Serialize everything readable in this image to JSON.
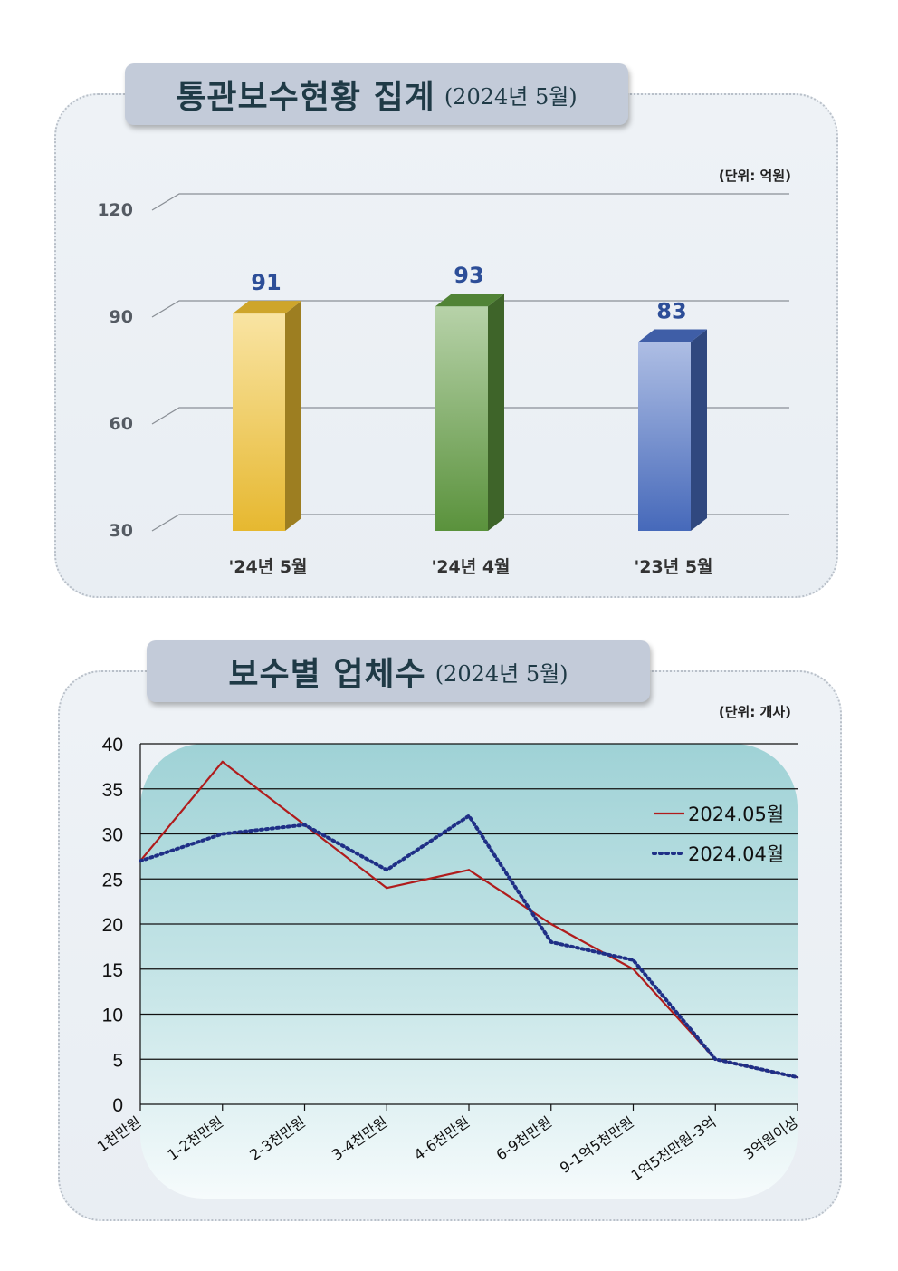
{
  "chart_data": [
    {
      "type": "bar",
      "title": "통관보수현황 집계",
      "subtitle": "(2024년 5월)",
      "unit": "(단위: 억원)",
      "categories": [
        "'24년 5월",
        "'24년 4월",
        "'23년 5월"
      ],
      "values": [
        91,
        93,
        83
      ],
      "data_labels": [
        "91",
        "93",
        "83"
      ],
      "ylim": [
        30,
        120
      ],
      "yticks": [
        30,
        60,
        90,
        120
      ],
      "grid": true,
      "colors": [
        "#f2c232",
        "#5f9a3f",
        "#4a6fc4"
      ]
    },
    {
      "type": "line",
      "title": "보수별 업체수",
      "subtitle": "(2024년 5월)",
      "unit": "(단위: 개사)",
      "categories": [
        "1천만원",
        "1-2천만원",
        "2-3천만원",
        "3-4천만원",
        "4-6천만원",
        "6-9천만원",
        "9-1억5천만원",
        "1억5천만원-3억",
        "3억원이상"
      ],
      "series": [
        {
          "name": "2024.05월",
          "values": [
            27,
            38,
            31,
            24,
            26,
            20,
            15,
            5,
            3
          ],
          "color": "#b01c1c",
          "style": "solid"
        },
        {
          "name": "2024.04월",
          "values": [
            27,
            30,
            31,
            26,
            32,
            18,
            16,
            5,
            3
          ],
          "color": "#1f2f86",
          "style": "dotted"
        }
      ],
      "ylim": [
        0,
        40
      ],
      "yticks": [
        0,
        5,
        10,
        15,
        20,
        25,
        30,
        35,
        40
      ],
      "grid": true,
      "legend": "top-right"
    }
  ]
}
